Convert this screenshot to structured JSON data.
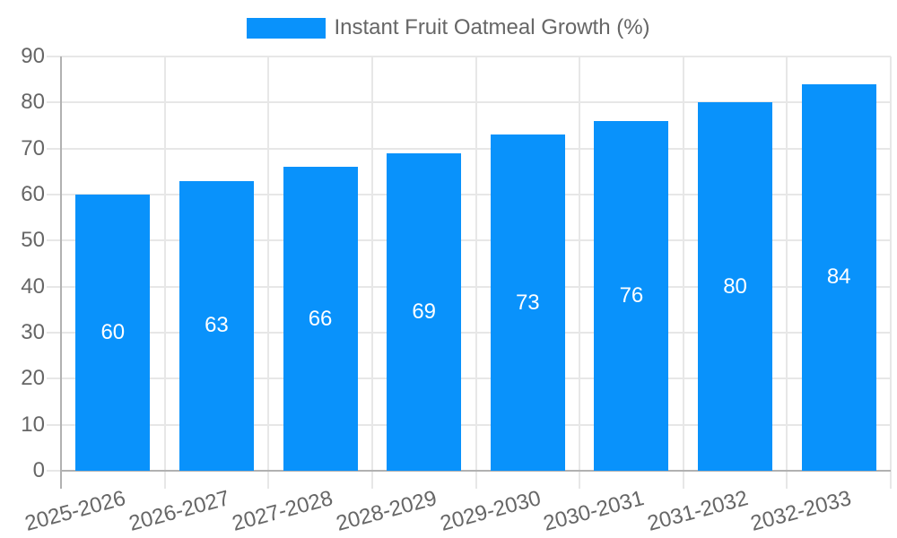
{
  "chart_data": {
    "type": "bar",
    "title": "",
    "legend": {
      "label": "Instant Fruit Oatmeal Growth (%)",
      "position": "top"
    },
    "categories": [
      "2025-2026",
      "2026-2027",
      "2027-2028",
      "2028-2029",
      "2029-2030",
      "2030-2031",
      "2031-2032",
      "2032-2033"
    ],
    "series": [
      {
        "name": "Instant Fruit Oatmeal Growth (%)",
        "values": [
          60,
          63,
          66,
          69,
          73,
          76,
          80,
          84
        ]
      }
    ],
    "value_labels_shown": true,
    "xlabel": "",
    "ylabel": "",
    "ylim": [
      0,
      90
    ],
    "ytick_step": 10,
    "yticks": [
      0,
      10,
      20,
      30,
      40,
      50,
      60,
      70,
      80,
      90
    ],
    "grid": true,
    "x_label_rotation_deg": -15,
    "colors": {
      "bar": "#0992fb",
      "tick_text": "#666666",
      "gridline": "#e7e7e7",
      "axis_line": "#b1b1b1",
      "value_label": "#ffffff",
      "background": "#ffffff"
    }
  }
}
